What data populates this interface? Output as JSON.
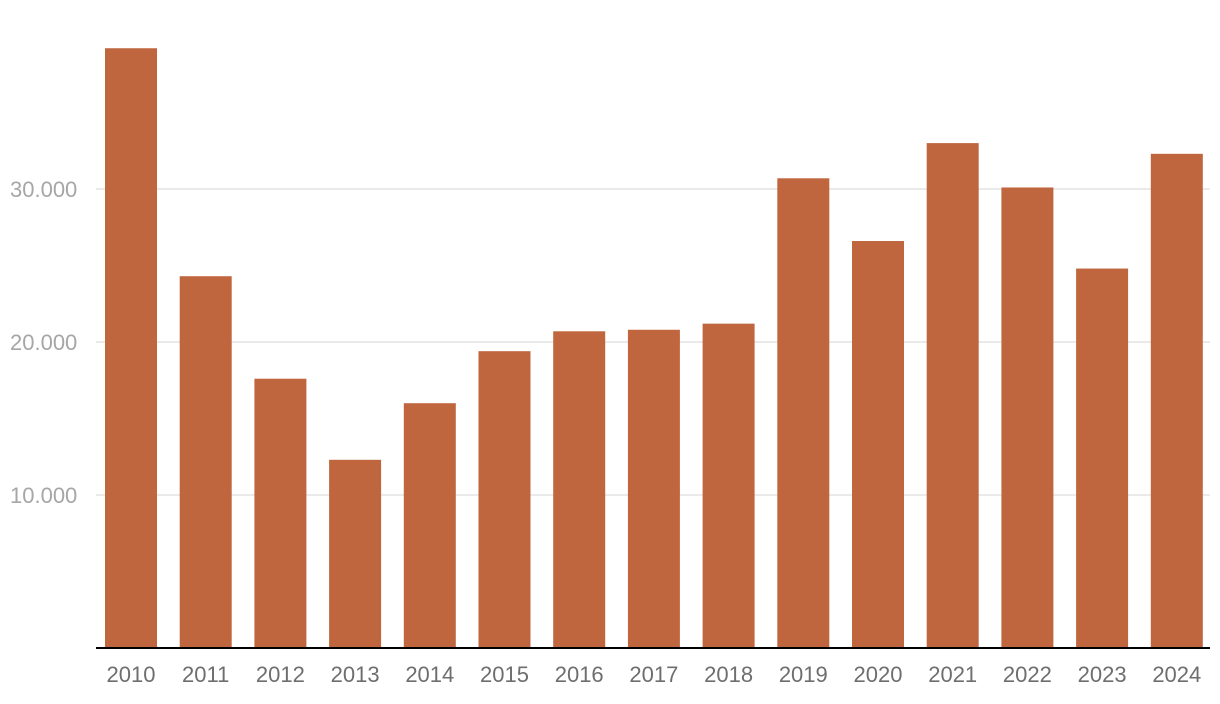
{
  "chart_data": {
    "type": "bar",
    "title": "",
    "xlabel": "",
    "ylabel": "",
    "categories": [
      "2010",
      "2011",
      "2012",
      "2013",
      "2014",
      "2015",
      "2016",
      "2017",
      "2018",
      "2019",
      "2020",
      "2021",
      "2022",
      "2023",
      "2024"
    ],
    "values": [
      39200,
      24300,
      17600,
      12300,
      16000,
      19400,
      20700,
      20800,
      21200,
      30700,
      26600,
      33000,
      30100,
      24800,
      32300
    ],
    "y_ticks": [
      {
        "value": 10000,
        "label": "10.000"
      },
      {
        "value": 20000,
        "label": "20.000"
      },
      {
        "value": 30000,
        "label": "30.000"
      }
    ],
    "ylim": [
      0,
      42500
    ],
    "grid": true,
    "legend": "none",
    "bar_color": "#c0663f"
  }
}
